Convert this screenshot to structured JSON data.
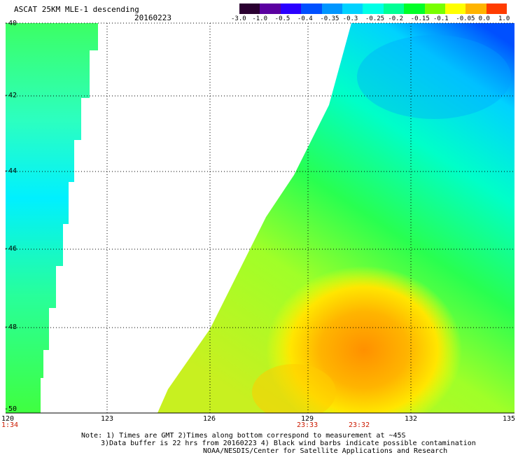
{
  "header": {
    "title": "ASCAT 25KM MLE-1 descending",
    "date": "20160223"
  },
  "colorbar": {
    "labels": [
      "-3.0",
      "-1.0",
      "-0.5",
      "-0.4",
      "-0.35",
      "-0.3",
      "-0.25",
      "-0.2",
      "-0.15",
      "-0.1",
      "-0.05",
      "0.0",
      "1.0"
    ],
    "colors": [
      "#2a0030",
      "#5a00a0",
      "#2a00ff",
      "#0050ff",
      "#0096ff",
      "#00d2ff",
      "#00ffe6",
      "#00ff96",
      "#00ff28",
      "#78ff00",
      "#ffff00",
      "#ffb400",
      "#ff3c00"
    ]
  },
  "axes": {
    "lat_labels": [
      "-40",
      "-42",
      "-44",
      "-46",
      "-48",
      "-50"
    ],
    "lon_labels": [
      "120",
      "123",
      "126",
      "129",
      "132",
      "135"
    ]
  },
  "times": {
    "t1": "1:34",
    "t2": "23:33",
    "t3": "23:32"
  },
  "notes": {
    "line1": "Note: 1) Times are GMT 2)Times along bottom correspond to measurement at ~45S",
    "line2": "3)Data buffer is 22 hrs from 20160223 4) Black wind barbs indicate possible contamination",
    "line3": "NOAA/NESDIS/Center for Satellite Applications and Research"
  }
}
